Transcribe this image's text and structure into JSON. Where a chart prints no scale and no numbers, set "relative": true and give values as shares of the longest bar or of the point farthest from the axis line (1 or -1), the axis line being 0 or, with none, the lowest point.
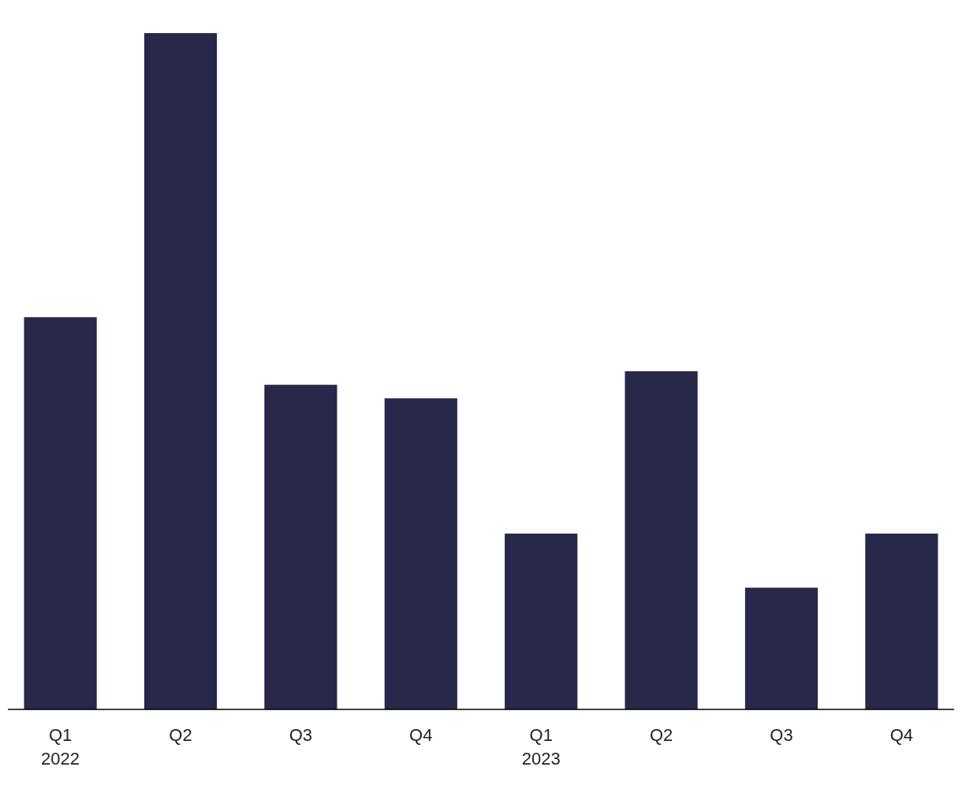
{
  "chart_data": {
    "type": "bar",
    "relative": true,
    "categories": [
      "Q1 2022",
      "Q2",
      "Q3",
      "Q4",
      "Q1 2023",
      "Q2",
      "Q3",
      "Q4"
    ],
    "values": [
      0.58,
      1,
      0.48,
      0.46,
      0.26,
      0.5,
      0.18,
      0.26
    ],
    "color": "#28284b"
  }
}
